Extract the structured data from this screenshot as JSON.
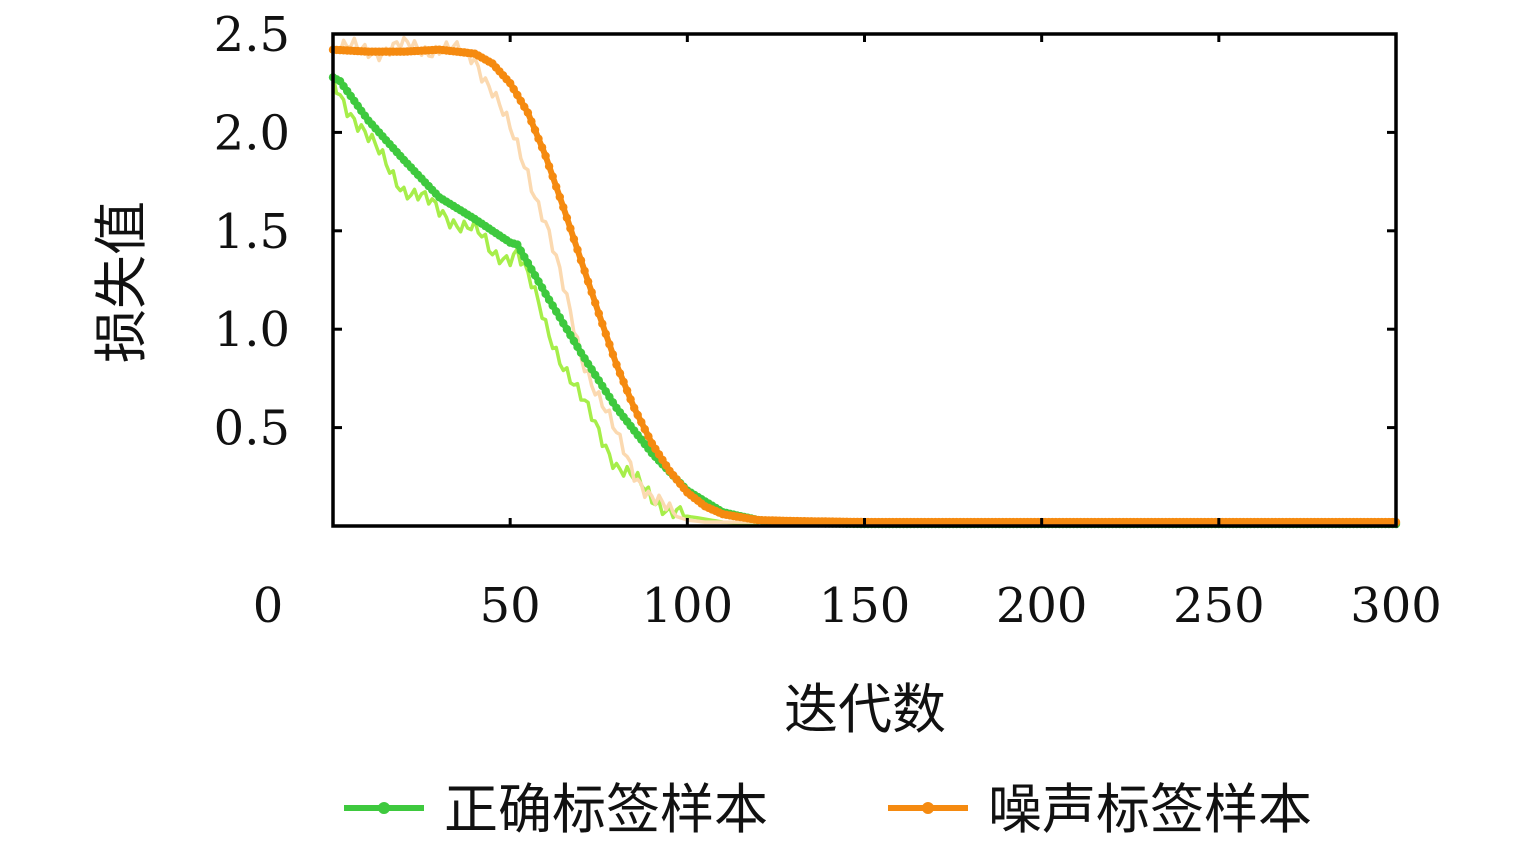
{
  "chart_data": {
    "type": "line",
    "title": "",
    "xlabel": "迭代数",
    "ylabel": "损失值",
    "xlim": [
      0,
      300
    ],
    "ylim": [
      0,
      2.5
    ],
    "x_ticks": [
      "0",
      "50",
      "100",
      "150",
      "200",
      "250",
      "300"
    ],
    "y_ticks": [
      "0.5",
      "1.0",
      "1.5",
      "2.0",
      "2.5"
    ],
    "grid": false,
    "legend_position": "bottom",
    "series": [
      {
        "name": "正确标签样本",
        "color": "#3ec93e",
        "raw_color": "#a6ee4a",
        "x": [
          0,
          2,
          10,
          20,
          30,
          40,
          45,
          50,
          52,
          60,
          70,
          80,
          90,
          100,
          110,
          120,
          130,
          150,
          200,
          250,
          300
        ],
        "y": [
          2.28,
          2.26,
          2.06,
          1.86,
          1.67,
          1.56,
          1.5,
          1.44,
          1.43,
          1.18,
          0.88,
          0.6,
          0.37,
          0.18,
          0.07,
          0.03,
          0.015,
          0.01,
          0.01,
          0.01,
          0.01
        ],
        "raw_y": [
          2.26,
          2.2,
          1.96,
          1.72,
          1.6,
          1.5,
          1.38,
          1.38,
          1.4,
          1.02,
          0.64,
          0.32,
          0.14,
          0.05,
          0.02,
          0.01,
          0.01,
          0.01,
          0.01,
          0.01,
          0.01
        ]
      },
      {
        "name": "噪声标签样本",
        "color": "#f58a10",
        "raw_color": "#fbd9b0",
        "x": [
          0,
          10,
          20,
          30,
          40,
          45,
          50,
          55,
          60,
          65,
          70,
          75,
          80,
          85,
          90,
          95,
          100,
          105,
          110,
          120,
          130,
          150,
          200,
          250,
          300
        ],
        "y": [
          2.42,
          2.41,
          2.41,
          2.42,
          2.4,
          2.35,
          2.25,
          2.1,
          1.88,
          1.62,
          1.35,
          1.08,
          0.82,
          0.6,
          0.42,
          0.28,
          0.17,
          0.1,
          0.06,
          0.03,
          0.025,
          0.02,
          0.02,
          0.02,
          0.02
        ],
        "raw_y": [
          2.42,
          2.42,
          2.43,
          2.43,
          2.38,
          2.22,
          2.0,
          1.8,
          1.55,
          1.2,
          0.88,
          0.66,
          0.45,
          0.28,
          0.15,
          0.06,
          0.03,
          0.02,
          0.02,
          0.02,
          0.02,
          0.02,
          0.02,
          0.02,
          0.02
        ]
      }
    ]
  }
}
